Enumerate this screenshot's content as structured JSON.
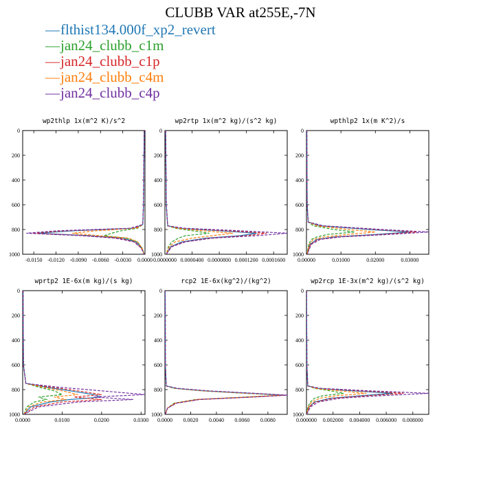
{
  "title": "CLUBB VAR at255E,-7N",
  "legend": [
    {
      "label": "flthist134.000f_xp2_revert",
      "color": "#1f77b4",
      "style": "solid"
    },
    {
      "label": "jan24_clubb_c1m",
      "color": "#2ca02c",
      "style": "dashed"
    },
    {
      "label": "jan24_clubb_c1p",
      "color": "#d62728",
      "style": "dashed"
    },
    {
      "label": "jan24_clubb_c4m",
      "color": "#ff7f0e",
      "style": "dashed"
    },
    {
      "label": "jan24_clubb_c4p",
      "color": "#7030a0",
      "style": "dashed"
    }
  ],
  "chart_data": [
    {
      "type": "line",
      "title": "wp2thlp  1x(m^2 K)/s^2",
      "xlim": [
        -0.0165,
        0.0
      ],
      "ylim": [
        1000,
        0
      ],
      "xticks": [
        -0.015,
        -0.012,
        -0.009,
        -0.006,
        -0.003,
        0.0
      ],
      "xtick_labels": [
        "-0.0150",
        "-0.0120",
        "-0.0090",
        "-0.0060",
        "-0.0030",
        "0.0000"
      ],
      "yticks": [
        0,
        200,
        400,
        600,
        800,
        1000
      ],
      "series": [
        {
          "y": [
            0,
            600,
            760,
            790,
            810,
            830,
            850,
            870,
            900,
            950,
            1000
          ],
          "x": [
            -0.0001,
            -0.0002,
            -0.0003,
            -0.0015,
            -0.0095,
            -0.0145,
            -0.0075,
            -0.003,
            -0.0012,
            -0.0004,
            -0.0001
          ]
        },
        {
          "y": [
            0,
            600,
            760,
            790,
            810,
            830,
            850,
            870,
            900,
            950,
            1000
          ],
          "x": [
            -0.0001,
            -0.0002,
            -0.0003,
            -0.001,
            -0.0032,
            -0.0045,
            -0.0055,
            -0.0025,
            -0.001,
            -0.0004,
            -0.0001
          ]
        },
        {
          "y": [
            0,
            600,
            760,
            790,
            810,
            830,
            850,
            870,
            900,
            950,
            1000
          ],
          "x": [
            -0.0001,
            -0.0002,
            -0.0003,
            -0.0015,
            -0.0105,
            -0.0152,
            -0.008,
            -0.0035,
            -0.0014,
            -0.0005,
            -0.0001
          ]
        },
        {
          "y": [
            0,
            600,
            760,
            790,
            810,
            830,
            850,
            870,
            900,
            950,
            1000
          ],
          "x": [
            -0.0001,
            -0.0002,
            -0.0003,
            -0.0012,
            -0.0065,
            -0.0098,
            -0.0062,
            -0.0022,
            -0.001,
            -0.0004,
            -0.0001
          ]
        },
        {
          "y": [
            0,
            600,
            760,
            790,
            810,
            830,
            850,
            870,
            900,
            950,
            1000
          ],
          "x": [
            -0.0001,
            -0.0002,
            -0.0003,
            -0.002,
            -0.0118,
            -0.016,
            -0.0085,
            -0.004,
            -0.0015,
            -0.0005,
            -0.0001
          ]
        }
      ]
    },
    {
      "type": "line",
      "title": "wp2rtp  1x(m^2 kg)/(s^2 kg)",
      "xlim": [
        0.0,
        0.00018
      ],
      "ylim": [
        1000,
        0
      ],
      "xticks": [
        0.0,
        4e-05,
        8e-05,
        0.00012,
        0.00016
      ],
      "xtick_labels": [
        "0.0000000",
        "0.0000400",
        "0.0000800",
        "0.0001200",
        "0.0001600"
      ],
      "yticks": [
        0,
        200,
        400,
        600,
        800,
        1000
      ],
      "series": [
        {
          "y": [
            0,
            600,
            770,
            790,
            810,
            830,
            850,
            870,
            900,
            940,
            1000
          ],
          "x": [
            1e-06,
            2e-06,
            4e-06,
            2e-05,
            8e-05,
            0.000135,
            0.00011,
            6e-05,
            2.5e-05,
            8e-06,
            2e-06
          ]
        },
        {
          "y": [
            0,
            600,
            770,
            790,
            810,
            830,
            850,
            870,
            900,
            940,
            1000
          ],
          "x": [
            1e-06,
            2e-06,
            4e-06,
            1.5e-05,
            4e-05,
            6.5e-05,
            3e-05,
            2e-05,
            1e-05,
            5e-06,
            2e-06
          ]
        },
        {
          "y": [
            0,
            600,
            770,
            790,
            810,
            830,
            850,
            870,
            900,
            940,
            1000
          ],
          "x": [
            1e-06,
            2e-06,
            4e-06,
            2.5e-05,
            9e-05,
            0.00015,
            0.00012,
            6.5e-05,
            2.8e-05,
            9e-06,
            2e-06
          ]
        },
        {
          "y": [
            0,
            600,
            770,
            790,
            810,
            830,
            850,
            870,
            900,
            940,
            1000
          ],
          "x": [
            1e-06,
            2e-06,
            4e-06,
            1.8e-05,
            5.5e-05,
            0.0001,
            7e-05,
            4e-05,
            1.5e-05,
            6e-06,
            2e-06
          ]
        },
        {
          "y": [
            0,
            600,
            770,
            790,
            810,
            830,
            850,
            870,
            900,
            940,
            1000
          ],
          "x": [
            1e-06,
            2e-06,
            4e-06,
            3e-05,
            0.00011,
            0.00018,
            0.000135,
            7e-05,
            3e-05,
            1e-05,
            2e-06
          ]
        }
      ]
    },
    {
      "type": "line",
      "title": "wpthlp2  1x(m K^2)/s",
      "xlim": [
        0.0,
        0.0355
      ],
      "ylim": [
        1000,
        0
      ],
      "xticks": [
        0.0,
        0.01,
        0.02,
        0.03
      ],
      "xtick_labels": [
        "0.00000",
        "0.01000",
        "0.02000",
        "0.03000"
      ],
      "yticks": [
        0,
        200,
        400,
        600,
        800,
        1000
      ],
      "series": [
        {
          "y": [
            0,
            600,
            740,
            770,
            800,
            820,
            840,
            860,
            880,
            920,
            1000
          ],
          "x": [
            0.0001,
            0.0002,
            0.0005,
            0.004,
            0.018,
            0.03,
            0.02,
            0.008,
            0.003,
            0.001,
            0.0002
          ]
        },
        {
          "y": [
            0,
            600,
            740,
            770,
            800,
            820,
            840,
            860,
            880,
            920,
            1000
          ],
          "x": [
            0.0001,
            0.0002,
            0.0005,
            0.002,
            0.008,
            0.014,
            0.006,
            0.003,
            0.0015,
            0.0006,
            0.0002
          ]
        },
        {
          "y": [
            0,
            600,
            740,
            770,
            800,
            820,
            840,
            860,
            880,
            920,
            1000
          ],
          "x": [
            0.0001,
            0.0002,
            0.0005,
            0.0045,
            0.02,
            0.032,
            0.022,
            0.009,
            0.0035,
            0.0012,
            0.0002
          ]
        },
        {
          "y": [
            0,
            600,
            740,
            770,
            800,
            820,
            840,
            860,
            880,
            920,
            1000
          ],
          "x": [
            0.0001,
            0.0002,
            0.0005,
            0.003,
            0.012,
            0.02,
            0.012,
            0.005,
            0.002,
            0.0008,
            0.0002
          ]
        },
        {
          "y": [
            0,
            600,
            740,
            770,
            800,
            820,
            840,
            860,
            880,
            920,
            1000
          ],
          "x": [
            0.0001,
            0.0002,
            0.0005,
            0.005,
            0.022,
            0.0355,
            0.024,
            0.01,
            0.004,
            0.0014,
            0.0002
          ]
        }
      ]
    },
    {
      "type": "line",
      "title": "wprtp2  1E-6x(m kg)/(s kg)",
      "xlim": [
        0.0,
        0.031
      ],
      "ylim": [
        1000,
        0
      ],
      "xticks": [
        0.0,
        0.01,
        0.02,
        0.03
      ],
      "xtick_labels": [
        "0.0000",
        "0.0100",
        "0.0200",
        "0.0300"
      ],
      "yticks": [
        0,
        200,
        400,
        600,
        800,
        1000
      ],
      "series": [
        {
          "y": [
            0,
            600,
            750,
            780,
            810,
            840,
            860,
            880,
            900,
            940,
            1000
          ],
          "x": [
            0.0001,
            0.0002,
            0.0008,
            0.006,
            0.012,
            0.018,
            0.02,
            0.012,
            0.007,
            0.002,
            0.0003
          ]
        },
        {
          "y": [
            0,
            600,
            750,
            780,
            810,
            840,
            860,
            880,
            900,
            940,
            1000
          ],
          "x": [
            0.0001,
            0.0002,
            0.0008,
            0.004,
            0.008,
            0.01,
            0.004,
            0.006,
            0.003,
            0.001,
            0.0003
          ]
        },
        {
          "y": [
            0,
            600,
            750,
            780,
            810,
            840,
            860,
            880,
            900,
            940,
            1000
          ],
          "x": [
            0.0001,
            0.0002,
            0.0008,
            0.007,
            0.014,
            0.02,
            0.013,
            0.02,
            0.01,
            0.003,
            0.0003
          ]
        },
        {
          "y": [
            0,
            600,
            750,
            780,
            810,
            840,
            860,
            880,
            900,
            940,
            1000
          ],
          "x": [
            0.0001,
            0.0002,
            0.0008,
            0.005,
            0.01,
            0.014,
            0.008,
            0.011,
            0.005,
            0.0015,
            0.0003
          ]
        },
        {
          "y": [
            0,
            600,
            750,
            780,
            810,
            840,
            860,
            880,
            900,
            940,
            1000
          ],
          "x": [
            0.0001,
            0.0002,
            0.0008,
            0.009,
            0.02,
            0.031,
            0.018,
            0.028,
            0.014,
            0.004,
            0.0003
          ]
        }
      ]
    },
    {
      "type": "line",
      "title": "rcp2  1E-6x(kg^2)/(kg^2)",
      "xlim": [
        0.0,
        0.0095
      ],
      "ylim": [
        1000,
        0
      ],
      "xticks": [
        0.0,
        0.002,
        0.004,
        0.006,
        0.008
      ],
      "xtick_labels": [
        "0.0000",
        "0.0020",
        "0.0040",
        "0.0060",
        "0.0080"
      ],
      "yticks": [
        0,
        200,
        400,
        600,
        800,
        1000
      ],
      "series": [
        {
          "y": [
            0,
            600,
            770,
            790,
            810,
            830,
            845,
            860,
            880,
            910,
            950,
            1000
          ],
          "x": [
            2e-05,
            4e-05,
            0.0001,
            0.0008,
            0.003,
            0.0065,
            0.0093,
            0.0065,
            0.0025,
            0.0008,
            0.0002,
            3e-05
          ]
        },
        {
          "y": [
            0,
            600,
            770,
            790,
            810,
            830,
            845,
            860,
            880,
            910,
            950,
            1000
          ],
          "x": [
            2e-05,
            4e-05,
            0.0001,
            0.0007,
            0.0028,
            0.0062,
            0.0092,
            0.0063,
            0.0024,
            0.0007,
            0.0002,
            3e-05
          ]
        },
        {
          "y": [
            0,
            600,
            770,
            790,
            810,
            830,
            845,
            860,
            880,
            910,
            950,
            1000
          ],
          "x": [
            2e-05,
            4e-05,
            0.0001,
            0.0009,
            0.0032,
            0.0068,
            0.0094,
            0.0067,
            0.0026,
            0.0008,
            0.0002,
            3e-05
          ]
        },
        {
          "y": [
            0,
            600,
            770,
            790,
            810,
            830,
            845,
            860,
            880,
            910,
            950,
            1000
          ],
          "x": [
            2e-05,
            4e-05,
            0.0001,
            0.0008,
            0.003,
            0.0064,
            0.0093,
            0.0064,
            0.0025,
            0.0008,
            0.0002,
            3e-05
          ]
        },
        {
          "y": [
            0,
            600,
            770,
            790,
            810,
            830,
            845,
            860,
            880,
            910,
            950,
            1000
          ],
          "x": [
            2e-05,
            4e-05,
            0.0001,
            0.001,
            0.0034,
            0.007,
            0.0095,
            0.0069,
            0.0027,
            0.0009,
            0.0002,
            3e-05
          ]
        }
      ]
    },
    {
      "type": "line",
      "title": "wp2rcp  1E-3x(m^2 kg)/(s^2 kg)",
      "xlim": [
        0.0,
        0.0092
      ],
      "ylim": [
        1000,
        0
      ],
      "xticks": [
        0.0,
        0.002,
        0.004,
        0.006,
        0.008
      ],
      "xtick_labels": [
        "0.000000",
        "0.002000",
        "0.004000",
        "0.006000",
        "0.008000"
      ],
      "yticks": [
        0,
        200,
        400,
        600,
        800,
        1000
      ],
      "series": [
        {
          "y": [
            0,
            600,
            770,
            790,
            810,
            830,
            850,
            870,
            900,
            940,
            1000
          ],
          "x": [
            1e-05,
            3e-05,
            0.0001,
            0.0008,
            0.0035,
            0.0065,
            0.004,
            0.0018,
            0.0006,
            0.0002,
            2e-05
          ]
        },
        {
          "y": [
            0,
            600,
            770,
            790,
            810,
            830,
            850,
            870,
            900,
            940,
            1000
          ],
          "x": [
            1e-05,
            3e-05,
            0.0001,
            0.0006,
            0.0018,
            0.0028,
            0.0012,
            0.0006,
            0.0003,
            0.0001,
            2e-05
          ]
        },
        {
          "y": [
            0,
            600,
            770,
            790,
            810,
            830,
            850,
            870,
            900,
            940,
            1000
          ],
          "x": [
            1e-05,
            3e-05,
            0.0001,
            0.0009,
            0.004,
            0.0073,
            0.0045,
            0.002,
            0.0007,
            0.0002,
            2e-05
          ]
        },
        {
          "y": [
            0,
            600,
            770,
            790,
            810,
            830,
            850,
            870,
            900,
            940,
            1000
          ],
          "x": [
            1e-05,
            3e-05,
            0.0001,
            0.0007,
            0.0025,
            0.0045,
            0.0022,
            0.001,
            0.0004,
            0.00015,
            2e-05
          ]
        },
        {
          "y": [
            0,
            600,
            770,
            790,
            810,
            830,
            850,
            870,
            900,
            940,
            1000
          ],
          "x": [
            1e-05,
            3e-05,
            0.0001,
            0.0011,
            0.0048,
            0.0092,
            0.0055,
            0.0025,
            0.0009,
            0.0003,
            2e-05
          ]
        }
      ]
    }
  ]
}
